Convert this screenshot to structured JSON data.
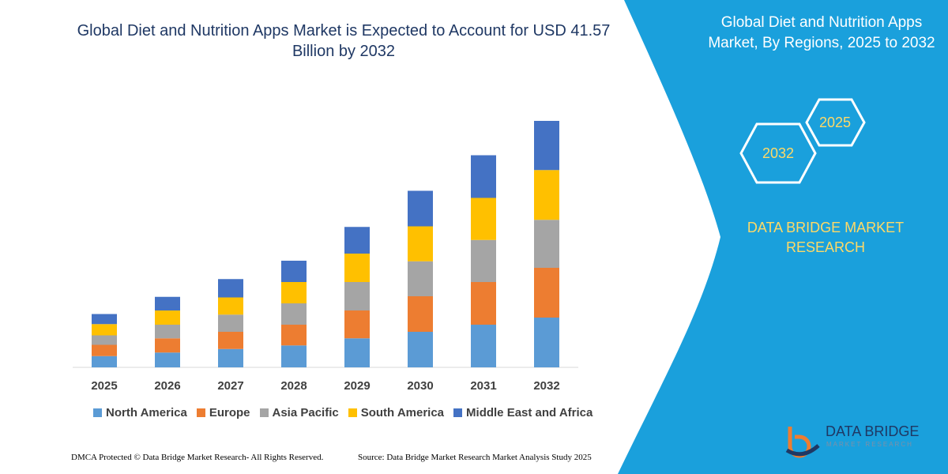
{
  "chart_data": {
    "type": "stacked-bar",
    "title": "Global Diet and Nutrition Apps Market is Expected to Account for USD 41.57 Billion by 2032",
    "categories": [
      "2025",
      "2026",
      "2027",
      "2028",
      "2029",
      "2030",
      "2031",
      "2032"
    ],
    "series": [
      {
        "name": "North America",
        "color": "#5b9bd5",
        "values": [
          1.9,
          2.5,
          3.1,
          3.7,
          4.9,
          6.0,
          7.2,
          8.4
        ]
      },
      {
        "name": "Europe",
        "color": "#ed7d31",
        "values": [
          1.9,
          2.4,
          2.9,
          3.5,
          4.7,
          6.0,
          7.2,
          8.4
        ]
      },
      {
        "name": "Asia Pacific",
        "color": "#a5a5a5",
        "values": [
          1.6,
          2.3,
          2.9,
          3.6,
          4.8,
          5.9,
          7.1,
          8.1
        ]
      },
      {
        "name": "South America",
        "color": "#ffc000",
        "values": [
          1.9,
          2.4,
          2.9,
          3.6,
          4.8,
          5.9,
          7.1,
          8.4
        ]
      },
      {
        "name": "Middle East and Africa",
        "color": "#4472c4",
        "values": [
          1.7,
          2.3,
          3.1,
          3.6,
          4.5,
          6.0,
          7.2,
          8.3
        ]
      }
    ]
  },
  "panel": {
    "title": "Global Diet and Nutrition Apps Market, By Regions, 2025 to 2032",
    "badges": [
      "2025",
      "2032"
    ],
    "brand": "DATA BRIDGE MARKET RESEARCH"
  },
  "logo": {
    "name": "DATA BRIDGE",
    "tagline": "MARKET RESEARCH"
  },
  "footer": {
    "left": "DMCA Protected © Data Bridge Market Research-  All Rights Reserved.",
    "right": "Source: Data Bridge Market Research  Market Analysis Study 2025"
  }
}
